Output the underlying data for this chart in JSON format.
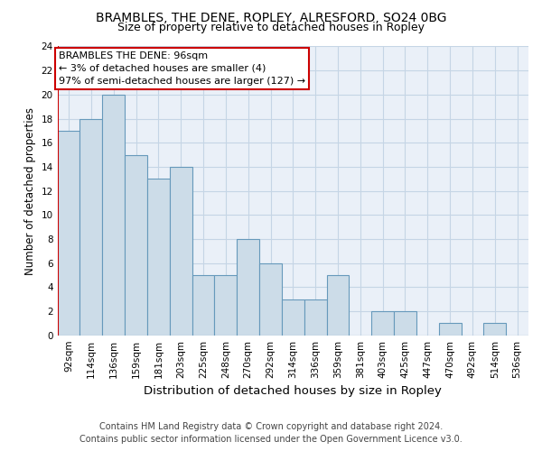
{
  "title1": "BRAMBLES, THE DENE, ROPLEY, ALRESFORD, SO24 0BG",
  "title2": "Size of property relative to detached houses in Ropley",
  "xlabel": "Distribution of detached houses by size in Ropley",
  "ylabel": "Number of detached properties",
  "categories": [
    "92sqm",
    "114sqm",
    "136sqm",
    "159sqm",
    "181sqm",
    "203sqm",
    "225sqm",
    "248sqm",
    "270sqm",
    "292sqm",
    "314sqm",
    "336sqm",
    "359sqm",
    "381sqm",
    "403sqm",
    "425sqm",
    "447sqm",
    "470sqm",
    "492sqm",
    "514sqm",
    "536sqm"
  ],
  "values": [
    17,
    18,
    20,
    15,
    13,
    14,
    5,
    5,
    8,
    6,
    3,
    3,
    5,
    0,
    2,
    2,
    0,
    1,
    0,
    1,
    0
  ],
  "bar_color": "#ccdce8",
  "bar_edgecolor": "#6699bb",
  "annotation_line1": "BRAMBLES THE DENE: 96sqm",
  "annotation_line2": "← 3% of detached houses are smaller (4)",
  "annotation_line3": "97% of semi-detached houses are larger (127) →",
  "ylim": [
    0,
    24
  ],
  "yticks": [
    0,
    2,
    4,
    6,
    8,
    10,
    12,
    14,
    16,
    18,
    20,
    22,
    24
  ],
  "footer1": "Contains HM Land Registry data © Crown copyright and database right 2024.",
  "footer2": "Contains public sector information licensed under the Open Government Licence v3.0.",
  "bg_color": "#ffffff",
  "plot_bg_color": "#eaf0f8",
  "grid_color": "#c5d5e5",
  "title1_fontsize": 10,
  "title2_fontsize": 9,
  "xlabel_fontsize": 9.5,
  "ylabel_fontsize": 8.5,
  "tick_fontsize": 7.5,
  "footer_fontsize": 7,
  "annot_fontsize": 8
}
